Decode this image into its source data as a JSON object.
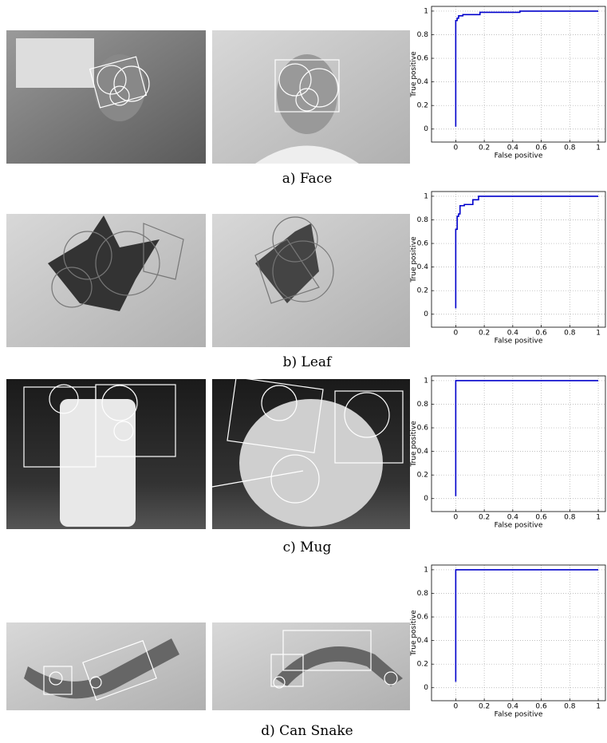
{
  "chart_data": [
    {
      "type": "line",
      "xlabel": "False positive",
      "ylabel": "True positive",
      "x": [
        0,
        0,
        0.01,
        0.01,
        0.02,
        0.02,
        0.05,
        0.05,
        0.17,
        0.17,
        0.45,
        0.45,
        1
      ],
      "values": [
        0.02,
        0.92,
        0.92,
        0.94,
        0.94,
        0.96,
        0.96,
        0.97,
        0.97,
        0.99,
        0.99,
        1,
        1
      ],
      "color": "#0000cc",
      "xlim": [
        -0.17,
        1.05
      ],
      "ylim": [
        -0.11,
        1.04
      ],
      "xticks": [
        0,
        0.2,
        0.4,
        0.6,
        0.8,
        1
      ],
      "yticks": [
        0,
        0.2,
        0.4,
        0.6,
        0.8,
        1
      ],
      "grid": true
    },
    {
      "type": "line",
      "xlabel": "False positive",
      "ylabel": "True positive",
      "x": [
        0,
        0,
        0.01,
        0.01,
        0.02,
        0.02,
        0.03,
        0.03,
        0.06,
        0.06,
        0.12,
        0.12,
        0.16,
        0.16,
        1
      ],
      "values": [
        0.05,
        0.72,
        0.72,
        0.83,
        0.83,
        0.85,
        0.85,
        0.92,
        0.92,
        0.93,
        0.93,
        0.97,
        0.97,
        1,
        1
      ],
      "color": "#0000cc",
      "xlim": [
        -0.17,
        1.05
      ],
      "ylim": [
        -0.11,
        1.04
      ],
      "xticks": [
        0,
        0.2,
        0.4,
        0.6,
        0.8,
        1
      ],
      "yticks": [
        0,
        0.2,
        0.4,
        0.6,
        0.8,
        1
      ],
      "grid": true
    },
    {
      "type": "line",
      "xlabel": "False positive",
      "ylabel": "True positive",
      "x": [
        0,
        0,
        1
      ],
      "values": [
        0.02,
        1,
        1
      ],
      "color": "#0000cc",
      "xlim": [
        -0.17,
        1.05
      ],
      "ylim": [
        -0.11,
        1.04
      ],
      "xticks": [
        0,
        0.2,
        0.4,
        0.6,
        0.8,
        1
      ],
      "yticks": [
        0,
        0.2,
        0.4,
        0.6,
        0.8,
        1
      ],
      "grid": true
    },
    {
      "type": "line",
      "xlabel": "False positive",
      "ylabel": "True positive",
      "x": [
        0,
        0,
        1
      ],
      "values": [
        0.05,
        1,
        1
      ],
      "color": "#0000cc",
      "xlim": [
        -0.17,
        1.05
      ],
      "ylim": [
        -0.11,
        1.04
      ],
      "xticks": [
        0,
        0.2,
        0.4,
        0.6,
        0.8,
        1
      ],
      "yticks": [
        0,
        0.2,
        0.4,
        0.6,
        0.8,
        1
      ],
      "grid": true
    }
  ],
  "captions": [
    "a) Face",
    "b) Leaf",
    "c) Mug",
    "d) Can Snake"
  ]
}
